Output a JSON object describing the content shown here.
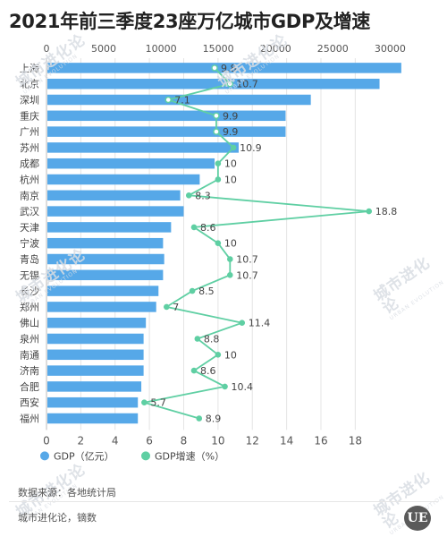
{
  "header": {
    "title": "2021年前三季度23座万亿城市GDP及增速"
  },
  "chart_data": {
    "type": "bar",
    "orientation": "horizontal",
    "title": "2021年前三季度23座万亿城市GDP及增速",
    "categories": [
      "上海",
      "北京",
      "深圳",
      "重庆",
      "广州",
      "苏州",
      "成都",
      "杭州",
      "南京",
      "武汉",
      "天津",
      "宁波",
      "青岛",
      "无锡",
      "长沙",
      "郑州",
      "佛山",
      "泉州",
      "南通",
      "济南",
      "合肥",
      "西安",
      "福州"
    ],
    "series": [
      {
        "name": "GDP（亿元）",
        "type": "bar",
        "axis": "top",
        "color": "#56A8E8",
        "values": [
          30900,
          29000,
          23000,
          20800,
          20800,
          16700,
          14600,
          13300,
          11600,
          11900,
          10800,
          10100,
          10200,
          10100,
          9700,
          9500,
          8600,
          8400,
          8400,
          8400,
          8200,
          7900,
          7900
        ]
      },
      {
        "name": "GDP增速（%）",
        "type": "line",
        "axis": "bottom",
        "color": "#5FCFA3",
        "values": [
          9.8,
          10.7,
          7.1,
          9.9,
          9.9,
          10.9,
          10,
          10,
          8.3,
          18.8,
          8.6,
          10,
          10.7,
          10.7,
          8.5,
          7,
          11.4,
          8.8,
          10,
          8.6,
          10.4,
          5.7,
          8.9
        ],
        "labels": [
          "9.8",
          "10.7",
          "7.1",
          "9.9",
          "9.9",
          "10.9",
          "10",
          "10",
          "8.3",
          "18.8",
          "8.6",
          "10",
          "10.7",
          "10.7",
          "8.5",
          "7",
          "11.4",
          "8.8",
          "10",
          "8.6",
          "10.4",
          "5.7",
          "8.9"
        ]
      }
    ],
    "x_top": {
      "range": [
        0,
        30000
      ],
      "ticks": [
        "0",
        "5000",
        "10000",
        "15000",
        "20000",
        "25000",
        "30000"
      ]
    },
    "x_bottom": {
      "range": [
        0,
        20
      ],
      "ticks": [
        "0",
        "2",
        "4",
        "6",
        "8",
        "10",
        "12",
        "14",
        "16",
        "18"
      ]
    },
    "grid": true,
    "legend_position": "bottom-left"
  },
  "watermark": {
    "text": "城市进化论",
    "sub": "URBAN EVOLUTION"
  },
  "footer": {
    "source": "数据来源：各地统计局",
    "credit": "城市进化论，镝数",
    "logo": "UE"
  }
}
